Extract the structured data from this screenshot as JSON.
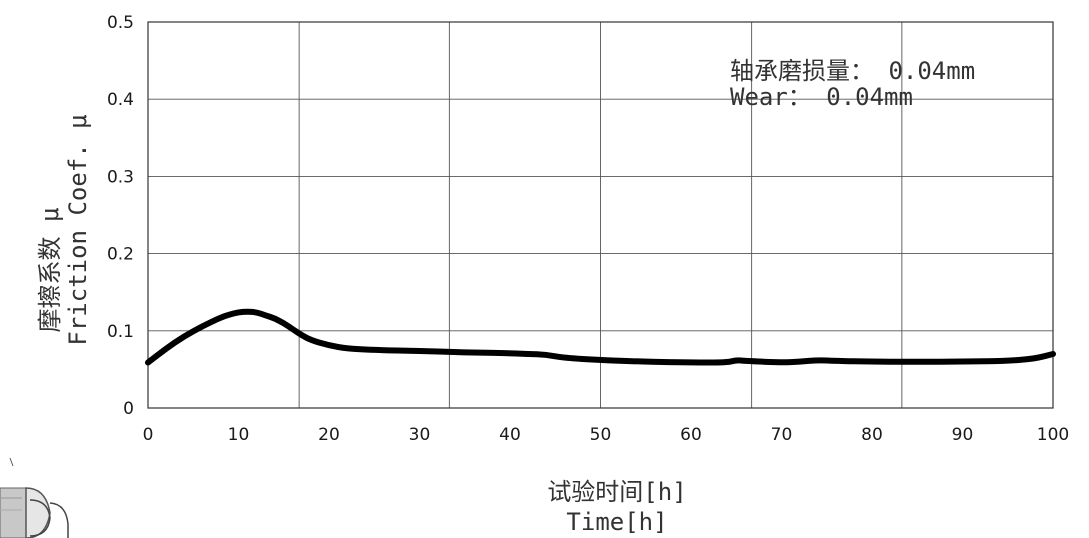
{
  "chart_data": {
    "type": "line",
    "xlim": [
      0,
      100
    ],
    "ylim": [
      0,
      0.5
    ],
    "xticks": [
      "0",
      "10",
      "20",
      "30",
      "40",
      "50",
      "60",
      "70",
      "80",
      "90",
      "100"
    ],
    "yticks": [
      "0",
      "0.1",
      "0.2",
      "0.3",
      "0.4",
      "0.5"
    ],
    "xlabel_cn": "试验时间[h]",
    "xlabel_en": "Time[h]",
    "ylabel_cn": "摩擦系数 μ",
    "ylabel_en": "Friction Coef. μ",
    "annotation_cn": "轴承磨损量： 0.04mm",
    "annotation_en": "Wear： 0.04mm",
    "grid": true,
    "vgrid_x": [
      16.7,
      33.3,
      50,
      66.7,
      83.3
    ],
    "series": [
      {
        "color": "#000000",
        "x": [
          0,
          2,
          4,
          6,
          8,
          9,
          10,
          11,
          12,
          13,
          14,
          15,
          16,
          17,
          18,
          20,
          22,
          25,
          30,
          35,
          40,
          42,
          44,
          46,
          50,
          55,
          60,
          64,
          65,
          66,
          70,
          72,
          74,
          76,
          80,
          85,
          90,
          95,
          98,
          100
        ],
        "y": [
          0.059,
          0.077,
          0.093,
          0.106,
          0.117,
          0.121,
          0.124,
          0.125,
          0.124,
          0.12,
          0.116,
          0.11,
          0.102,
          0.094,
          0.088,
          0.081,
          0.077,
          0.075,
          0.074,
          0.072,
          0.071,
          0.07,
          0.069,
          0.065,
          0.062,
          0.06,
          0.059,
          0.059,
          0.062,
          0.061,
          0.059,
          0.06,
          0.062,
          0.061,
          0.06,
          0.06,
          0.06,
          0.061,
          0.064,
          0.07
        ]
      }
    ]
  }
}
